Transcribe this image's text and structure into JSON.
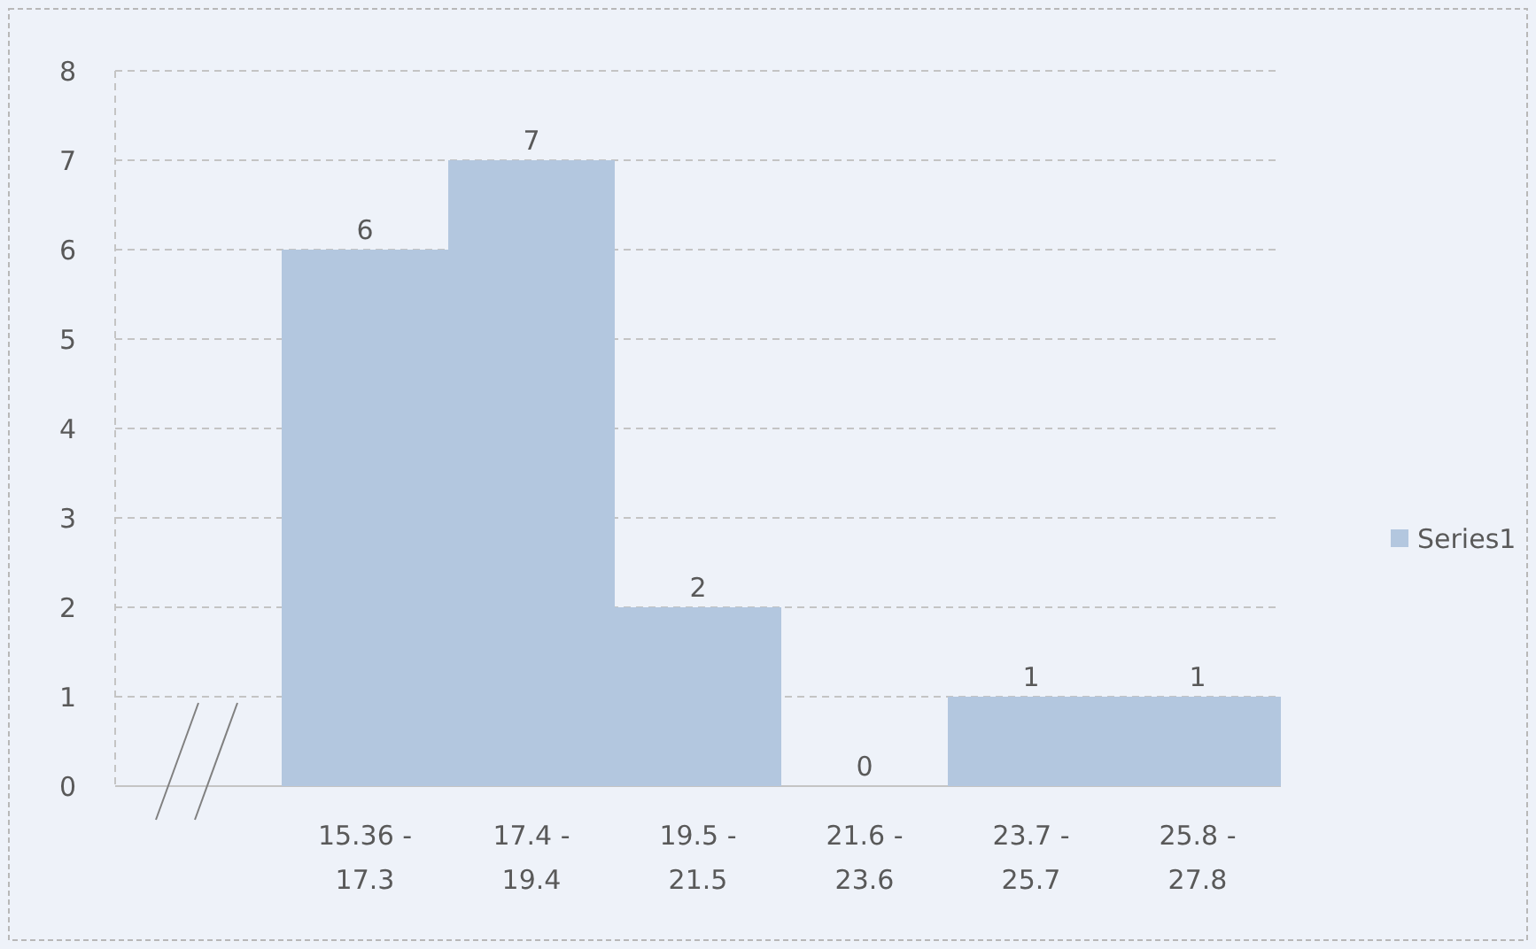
{
  "chart_data": {
    "type": "bar",
    "categories": [
      null,
      "15.36 - 17.3",
      "17.4 - 19.4",
      "19.5 - 21.5",
      "21.6 - 23.6",
      "23.7 - 25.7",
      "25.8 - 27.8"
    ],
    "series": [
      {
        "name": "Series1",
        "color": "#b3c7df",
        "values": [
          null,
          6,
          7,
          2,
          0,
          1,
          1
        ]
      }
    ],
    "ylim": [
      0,
      8
    ],
    "yticks": [
      0,
      1,
      2,
      3,
      4,
      5,
      6,
      7,
      8
    ],
    "grid": "y",
    "data_labels": true,
    "legend": "right"
  }
}
